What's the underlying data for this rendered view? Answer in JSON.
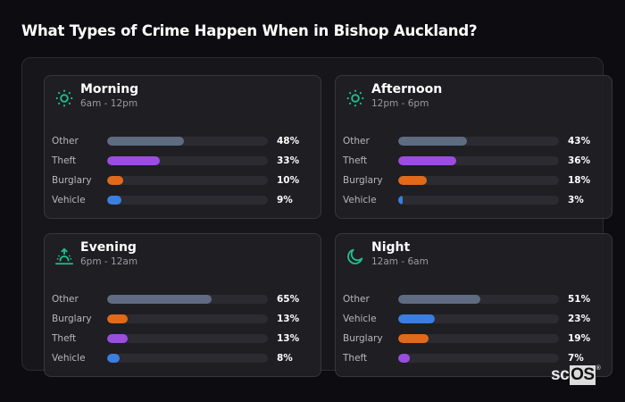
{
  "page": {
    "title": "What Types of Crime Happen When in Bishop Auckland?"
  },
  "colors": {
    "accent": "#1fbf8f",
    "Other": "#5e6b80",
    "Theft": "#9b4de0",
    "Burglary": "#e06a1a",
    "Vehicle": "#3a7ee0",
    "track": "#2b2b31"
  },
  "cards": [
    {
      "title": "Morning",
      "subtitle": "6am - 12pm",
      "icon": "sun-icon",
      "rows": [
        {
          "label": "Other",
          "value": 48,
          "pct": "48%"
        },
        {
          "label": "Theft",
          "value": 33,
          "pct": "33%"
        },
        {
          "label": "Burglary",
          "value": 10,
          "pct": "10%"
        },
        {
          "label": "Vehicle",
          "value": 9,
          "pct": "9%"
        }
      ]
    },
    {
      "title": "Afternoon",
      "subtitle": "12pm - 6pm",
      "icon": "sun-icon",
      "rows": [
        {
          "label": "Other",
          "value": 43,
          "pct": "43%"
        },
        {
          "label": "Theft",
          "value": 36,
          "pct": "36%"
        },
        {
          "label": "Burglary",
          "value": 18,
          "pct": "18%"
        },
        {
          "label": "Vehicle",
          "value": 3,
          "pct": "3%"
        }
      ]
    },
    {
      "title": "Evening",
      "subtitle": "6pm - 12am",
      "icon": "sunset-icon",
      "rows": [
        {
          "label": "Other",
          "value": 65,
          "pct": "65%"
        },
        {
          "label": "Burglary",
          "value": 13,
          "pct": "13%"
        },
        {
          "label": "Theft",
          "value": 13,
          "pct": "13%"
        },
        {
          "label": "Vehicle",
          "value": 8,
          "pct": "8%"
        }
      ]
    },
    {
      "title": "Night",
      "subtitle": "12am - 6am",
      "icon": "moon-icon",
      "rows": [
        {
          "label": "Other",
          "value": 51,
          "pct": "51%"
        },
        {
          "label": "Vehicle",
          "value": 23,
          "pct": "23%"
        },
        {
          "label": "Burglary",
          "value": 19,
          "pct": "19%"
        },
        {
          "label": "Theft",
          "value": 7,
          "pct": "7%"
        }
      ]
    }
  ],
  "logo": {
    "sc": "sc",
    "os": "OS",
    "reg": "®"
  },
  "chart_data": [
    {
      "type": "bar",
      "orientation": "horizontal",
      "title": "Morning",
      "subtitle": "6am - 12pm",
      "categories": [
        "Other",
        "Theft",
        "Burglary",
        "Vehicle"
      ],
      "values": [
        48,
        33,
        10,
        9
      ],
      "unit": "%",
      "xlim": [
        0,
        100
      ]
    },
    {
      "type": "bar",
      "orientation": "horizontal",
      "title": "Afternoon",
      "subtitle": "12pm - 6pm",
      "categories": [
        "Other",
        "Theft",
        "Burglary",
        "Vehicle"
      ],
      "values": [
        43,
        36,
        18,
        3
      ],
      "unit": "%",
      "xlim": [
        0,
        100
      ]
    },
    {
      "type": "bar",
      "orientation": "horizontal",
      "title": "Evening",
      "subtitle": "6pm - 12am",
      "categories": [
        "Other",
        "Burglary",
        "Theft",
        "Vehicle"
      ],
      "values": [
        65,
        13,
        13,
        8
      ],
      "unit": "%",
      "xlim": [
        0,
        100
      ]
    },
    {
      "type": "bar",
      "orientation": "horizontal",
      "title": "Night",
      "subtitle": "12am - 6am",
      "categories": [
        "Other",
        "Vehicle",
        "Burglary",
        "Theft"
      ],
      "values": [
        51,
        23,
        19,
        7
      ],
      "unit": "%",
      "xlim": [
        0,
        100
      ]
    }
  ]
}
